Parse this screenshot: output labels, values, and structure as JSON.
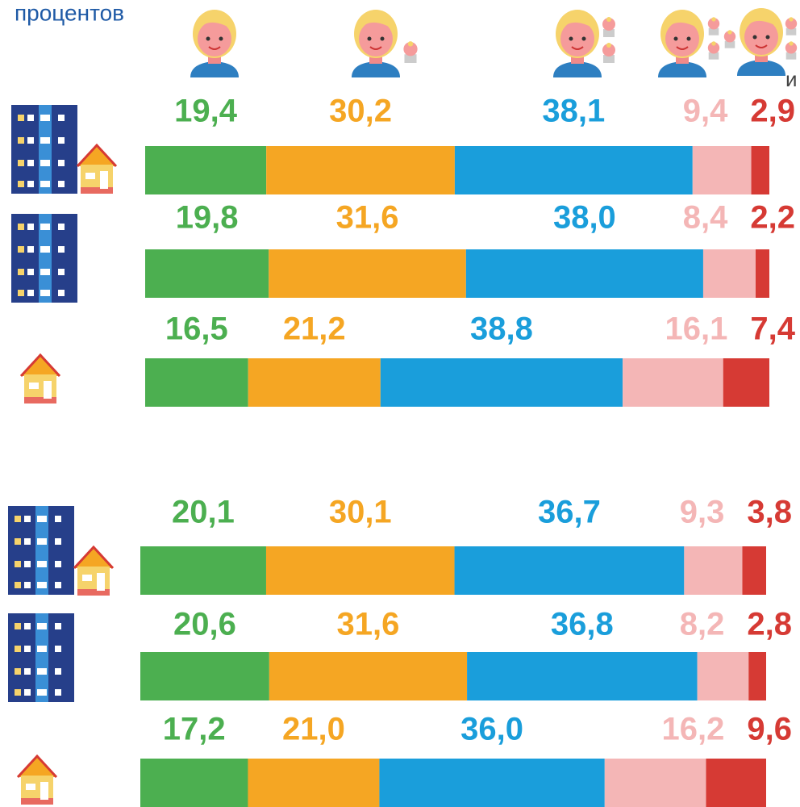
{
  "chart_data": {
    "type": "stacked-bar",
    "title": "процентов",
    "annotation": "и",
    "categories": [
      null,
      null,
      null,
      null,
      null,
      null
    ],
    "series": [
      {
        "color": "#4caf50",
        "values": [
          19.4,
          19.8,
          16.5,
          20.1,
          20.6,
          17.2
        ],
        "value_labels": [
          "19,4",
          "19,8",
          "16,5",
          "20,1",
          "20,6",
          "17,2"
        ]
      },
      {
        "color": "#f5a623",
        "values": [
          30.2,
          31.6,
          21.2,
          30.1,
          31.6,
          21.0
        ],
        "value_labels": [
          "30,2",
          "31,6",
          "21,2",
          "30,1",
          "31,6",
          "21,0"
        ]
      },
      {
        "color": "#1a9edb",
        "values": [
          38.1,
          38.0,
          38.8,
          36.7,
          36.8,
          36.0
        ],
        "value_labels": [
          "38,1",
          "38,0",
          "38,8",
          "36,7",
          "36,8",
          "36,0"
        ]
      },
      {
        "color": "#f4b6b6",
        "values": [
          9.4,
          8.4,
          16.1,
          9.3,
          8.2,
          16.2
        ],
        "value_labels": [
          "9,4",
          "8,4",
          "16,1",
          "9,3",
          "8,2",
          "16,2"
        ]
      },
      {
        "color": "#d63a34",
        "values": [
          2.9,
          2.2,
          7.4,
          3.8,
          2.8,
          9.6
        ],
        "value_labels": [
          "2,9",
          "2,2",
          "7,4",
          "3,8",
          "2,8",
          "9,6"
        ]
      }
    ]
  }
}
